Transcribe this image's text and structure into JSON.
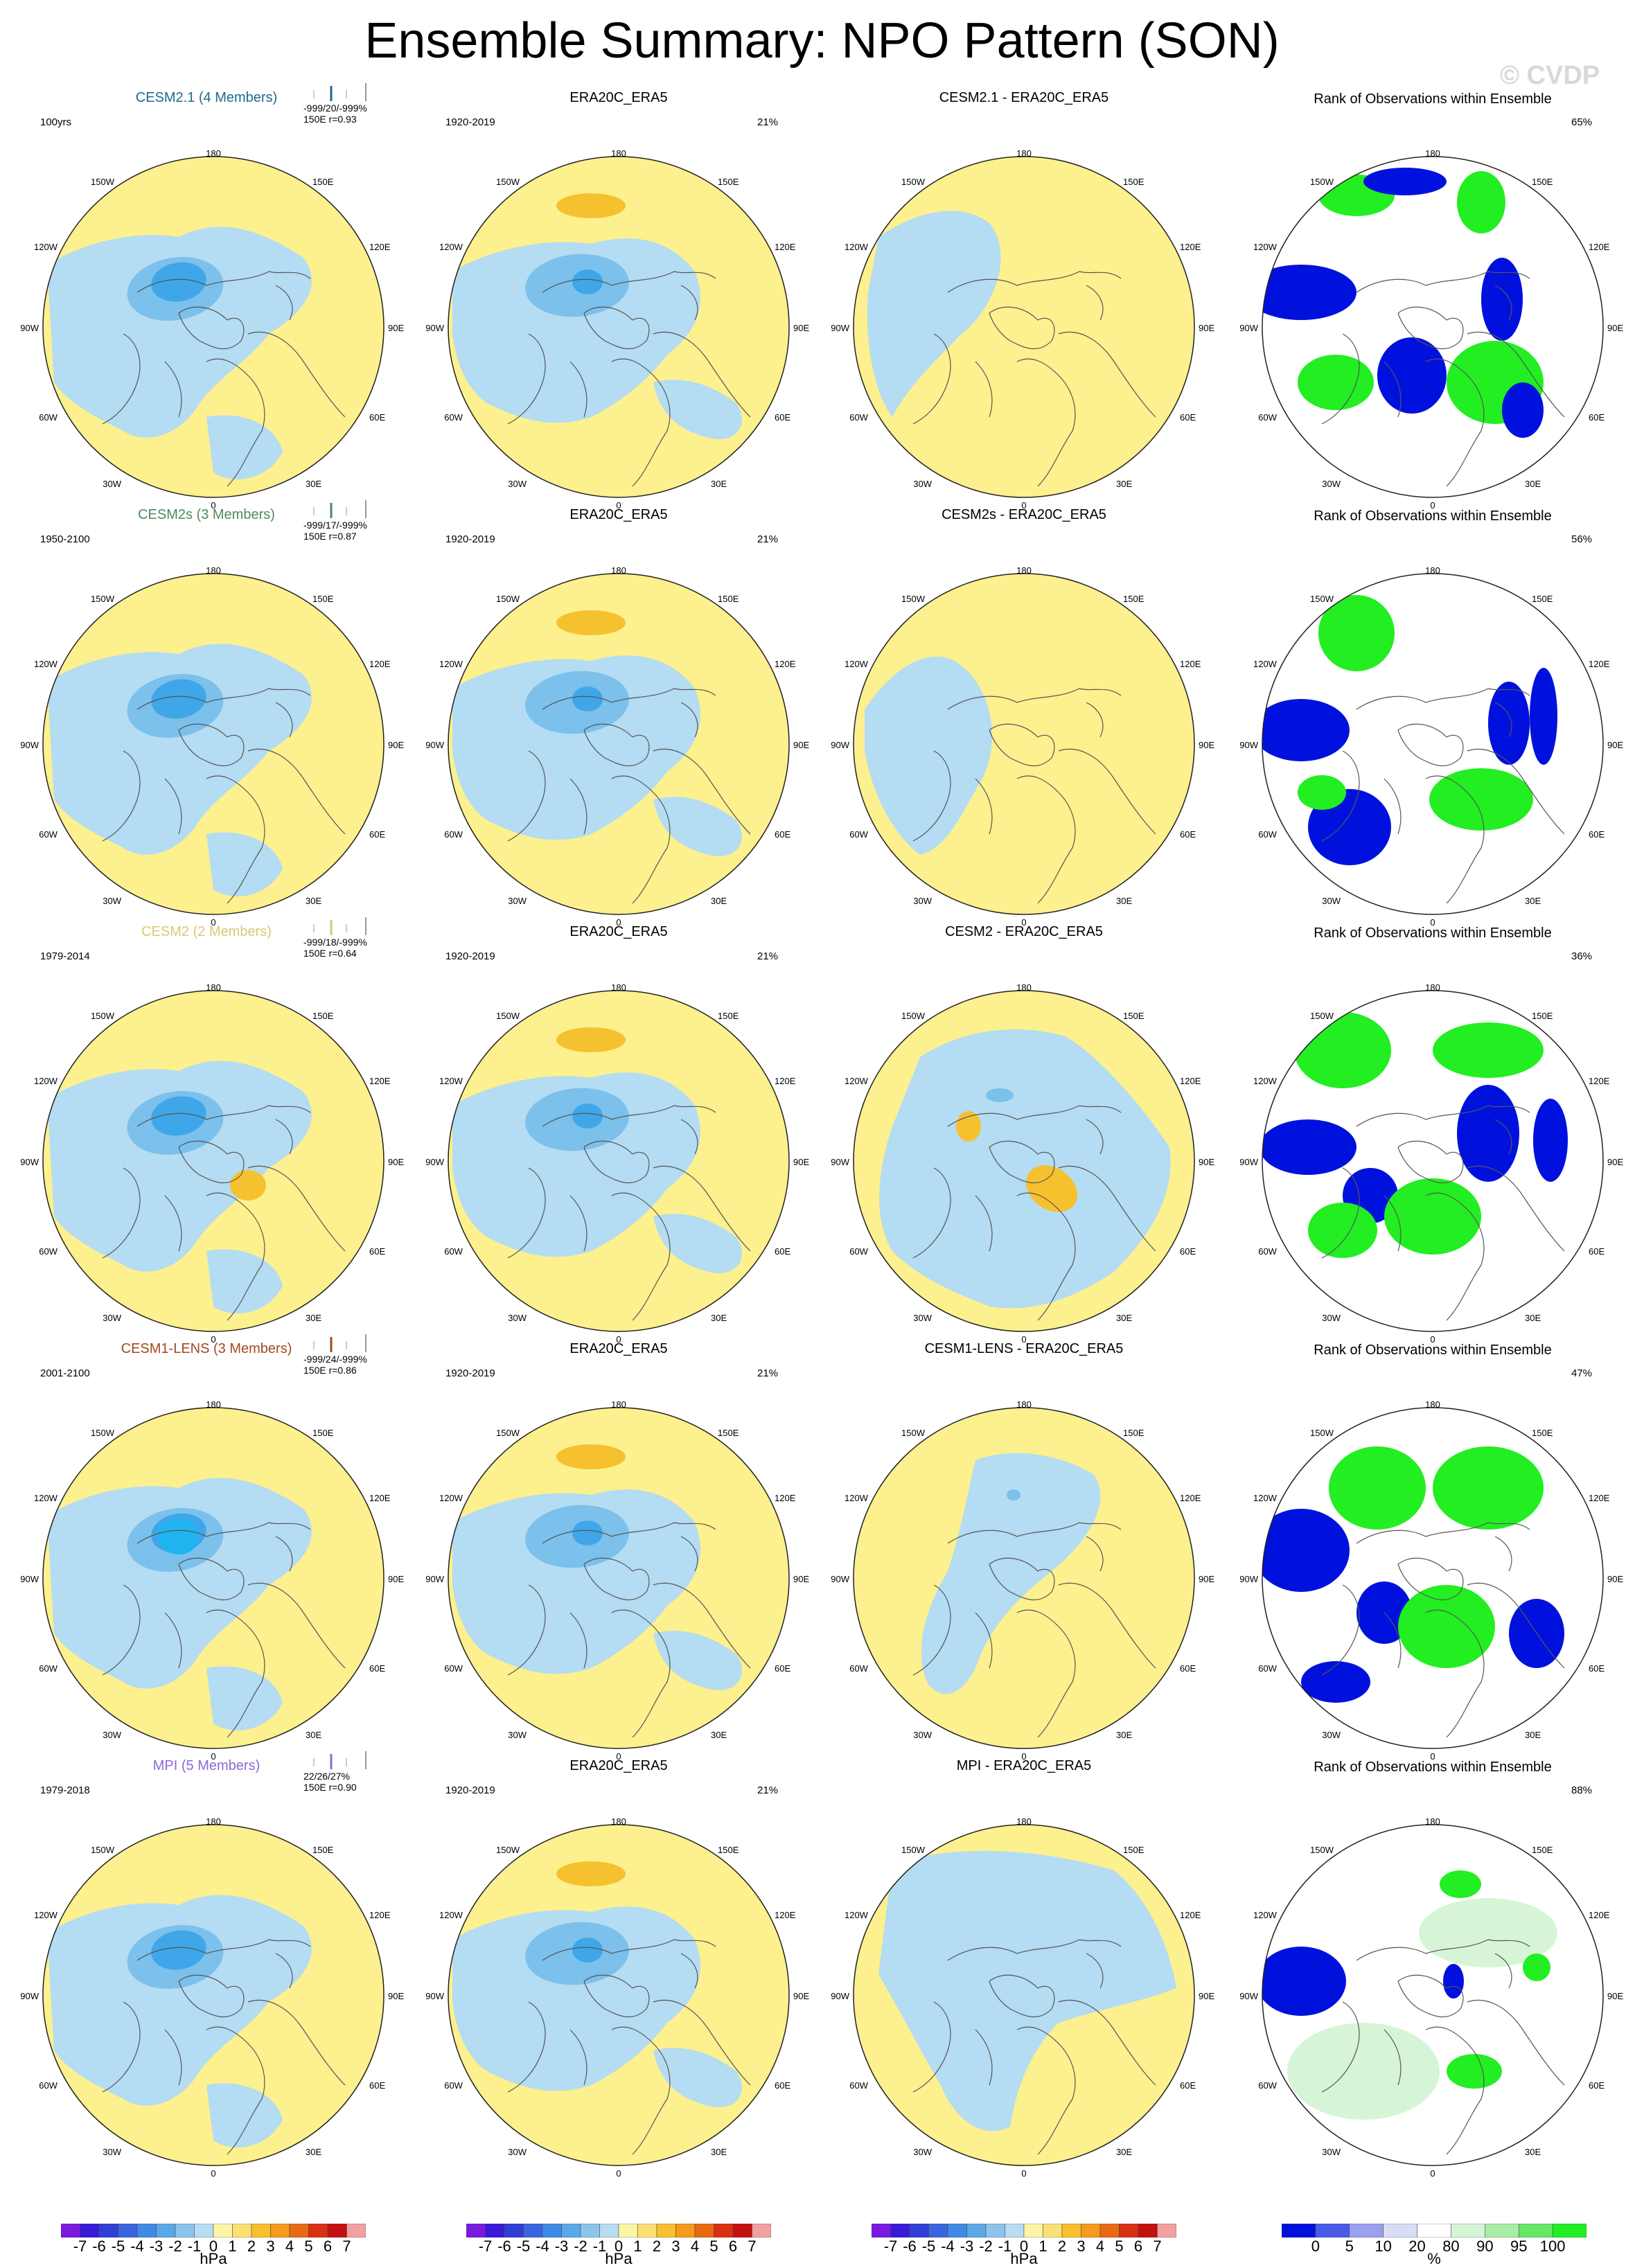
{
  "title": "Ensemble Summary: NPO Pattern (SON)",
  "credit": "© CVDP",
  "colors": {
    "neg2": "#b4dcf2",
    "neg4": "#7cc0ec",
    "neg6": "#3fa7e9",
    "neg8": "#1fb4f0",
    "pos1": "#fdf08e",
    "pos3": "#f6c12e",
    "rank_blue": "#0011dd",
    "rank_green": "#22ee22",
    "rank_light": "#d6f5d6",
    "coast": "#555555"
  },
  "lon_labels": {
    "top": "180",
    "bottom": "0",
    "ul": "150W",
    "ur": "150E",
    "ml": "120W",
    "mr": "120E",
    "l": "90W",
    "r": "90E",
    "ll": "60W",
    "lr": "60E",
    "bl": "30W",
    "br": "30E"
  },
  "rows": [
    {
      "model": "CESM2.1 (4 Members)",
      "model_color": "#1f6a8c",
      "period": "100yrs",
      "stats1": "-999/20/-999%",
      "stats2": "150E r=0.93",
      "obs_title": "ERA20C_ERA5",
      "obs_period": "1920-2019",
      "obs_pct": "21%",
      "diff_title": "CESM2.1 - ERA20C_ERA5",
      "rank_title": "Rank of Observations within Ensemble",
      "rank_pct": "65%"
    },
    {
      "model": "CESM2s (3 Members)",
      "model_color": "#4e8a62",
      "period": "1950-2100",
      "stats1": "-999/17/-999%",
      "stats2": "150E r=0.87",
      "obs_title": "ERA20C_ERA5",
      "obs_period": "1920-2019",
      "obs_pct": "21%",
      "diff_title": "CESM2s - ERA20C_ERA5",
      "rank_title": "Rank of Observations within Ensemble",
      "rank_pct": "56%"
    },
    {
      "model": "CESM2 (2 Members)",
      "model_color": "#d8c877",
      "period": "1979-2014",
      "stats1": "-999/18/-999%",
      "stats2": "150E r=0.64",
      "obs_title": "ERA20C_ERA5",
      "obs_period": "1920-2019",
      "obs_pct": "21%",
      "diff_title": "CESM2 - ERA20C_ERA5",
      "rank_title": "Rank of Observations within Ensemble",
      "rank_pct": "36%"
    },
    {
      "model": "CESM1-LENS (3 Members)",
      "model_color": "#a04a1c",
      "period": "2001-2100",
      "stats1": "-999/24/-999%",
      "stats2": "150E r=0.86",
      "obs_title": "ERA20C_ERA5",
      "obs_period": "1920-2019",
      "obs_pct": "21%",
      "diff_title": "CESM1-LENS - ERA20C_ERA5",
      "rank_title": "Rank of Observations within Ensemble",
      "rank_pct": "47%"
    },
    {
      "model": "MPI (5 Members)",
      "model_color": "#8a6ad6",
      "period": "1979-2018",
      "stats1": "22/26/27%",
      "stats2": "150E r=0.90",
      "obs_title": "ERA20C_ERA5",
      "obs_period": "1920-2019",
      "obs_pct": "21%",
      "diff_title": "MPI - ERA20C_ERA5",
      "rank_title": "Rank of Observations within Ensemble",
      "rank_pct": "88%"
    }
  ],
  "colorbar": {
    "labels": [
      "-7",
      "-6",
      "-5",
      "-4",
      "-3",
      "-2",
      "-1",
      "0",
      "1",
      "2",
      "3",
      "4",
      "5",
      "6",
      "7"
    ],
    "colors": [
      "#7a1ae0",
      "#3a1ad8",
      "#2f3fd6",
      "#3a64e0",
      "#3f8ae6",
      "#5aa8e8",
      "#8cc4ec",
      "#b8dcf2",
      "#fdf5a6",
      "#fde073",
      "#f8bf2e",
      "#f59a1c",
      "#ea6a12",
      "#d93012",
      "#c41010",
      "#f2a0a0"
    ],
    "unit": "hPa",
    "rank_labels": [
      "0",
      "5",
      "10",
      "20",
      "80",
      "90",
      "95",
      "100"
    ],
    "rank_colors": [
      "#0011dd",
      "#4a5ae8",
      "#9aa0ee",
      "#d8dcf6",
      "#ffffff",
      "#d6f5d6",
      "#a8eca8",
      "#66e866",
      "#22ee22"
    ],
    "rank_unit": "%"
  }
}
